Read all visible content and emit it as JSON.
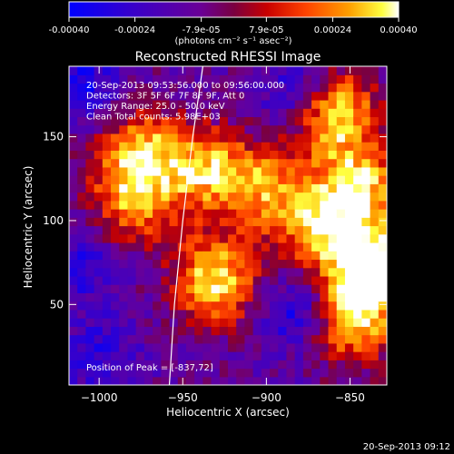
{
  "colorbar": {
    "tick_labels": [
      "-0.00040",
      "-0.00024",
      "-7.9e-05",
      "7.9e-05",
      "0.00024",
      "0.00040"
    ],
    "tick_values": [
      -0.0004,
      -0.00024,
      -7.9e-05,
      7.9e-05,
      0.00024,
      0.0004
    ],
    "units": "(photons cm⁻² s⁻¹ asec⁻²)",
    "range": [
      -0.0004,
      0.0004
    ]
  },
  "chart_data": {
    "type": "heatmap",
    "title": "Reconstructed RHESSI Image",
    "xlabel": "Heliocentric X (arcsec)",
    "ylabel": "Heliocentric Y (arcsec)",
    "xlim": [
      -1018,
      -828
    ],
    "ylim": [
      2,
      192
    ],
    "xticks": [
      -1000,
      -950,
      -900,
      -850
    ],
    "xtick_labels": [
      "−1000",
      "−950",
      "−900",
      "−850"
    ],
    "yticks": [
      50,
      100,
      150
    ],
    "ytick_labels": [
      "50",
      "100",
      "150"
    ],
    "annotations": [
      "20-Sep-2013 09:53:56.000 to 09:56:00.000",
      "Detectors: 3F 5F 6F 7F 8F 9F, Att 0",
      "Energy Range: 25.0 - 50.0 keV",
      "Clean     Total counts: 5.98E+03"
    ],
    "peak_label": "Position of Peak = [-837,72]",
    "peak": [
      -837,
      72
    ],
    "limb_curve": [
      [
        -958,
        2
      ],
      [
        -955,
        50
      ],
      [
        -950,
        100
      ],
      [
        -944,
        150
      ],
      [
        -938,
        192
      ]
    ],
    "hot_regions": [
      {
        "x": -975,
        "y": 140,
        "level": 0.7
      },
      {
        "x": -980,
        "y": 110,
        "level": 0.55
      },
      {
        "x": -935,
        "y": 130,
        "level": 0.65
      },
      {
        "x": -930,
        "y": 65,
        "level": 0.8
      },
      {
        "x": -900,
        "y": 120,
        "level": 0.55
      },
      {
        "x": -860,
        "y": 165,
        "level": 0.85
      },
      {
        "x": -845,
        "y": 120,
        "level": 0.75
      },
      {
        "x": -837,
        "y": 72,
        "level": 1.0
      },
      {
        "x": -850,
        "y": 40,
        "level": 0.7
      },
      {
        "x": -868,
        "y": 95,
        "level": 0.6
      }
    ],
    "cold_regions": [
      {
        "x": -1010,
        "y": 75,
        "level": 0.3
      },
      {
        "x": -1000,
        "y": 20,
        "level": 0.25
      },
      {
        "x": -880,
        "y": 45,
        "level": 0.4
      },
      {
        "x": -880,
        "y": 175,
        "level": 0.4
      },
      {
        "x": -1010,
        "y": 180,
        "level": 0.35
      }
    ]
  },
  "footer": {
    "timestamp": "20-Sep-2013 09:12"
  }
}
